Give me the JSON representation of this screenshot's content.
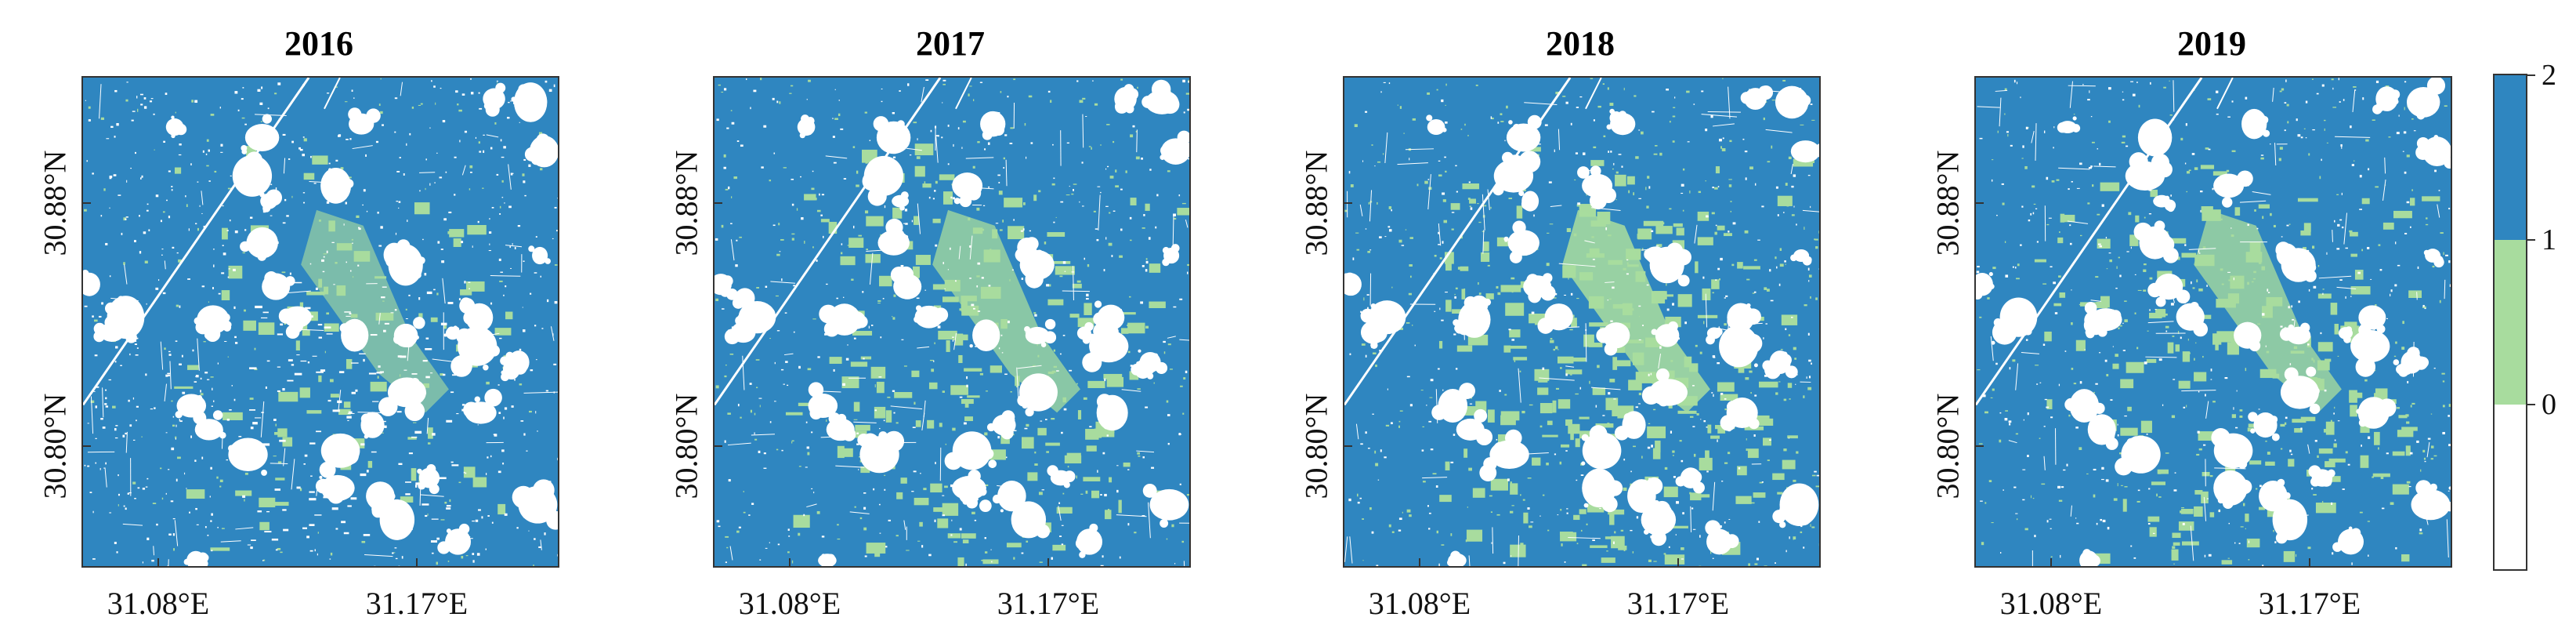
{
  "panels": [
    {
      "title": "2016"
    },
    {
      "title": "2017"
    },
    {
      "title": "2018"
    },
    {
      "title": "2019"
    }
  ],
  "x_ticks": [
    "31.08°E",
    "31.17°E"
  ],
  "y_ticks": [
    "30.88°N",
    "30.80°N"
  ],
  "colorbar": {
    "labels": [
      "2",
      "1",
      "0"
    ],
    "classes": [
      {
        "value_range": [
          1,
          2
        ],
        "color": "#2f86c0"
      },
      {
        "value_range": [
          0,
          1
        ],
        "color": "#a8dc9e"
      },
      {
        "value_range": [
          -1,
          0
        ],
        "color": "#ffffff"
      }
    ]
  },
  "colors": {
    "class_2": "#2f86c0",
    "class_1": "#a8dc9e",
    "class_0": "#ffffff",
    "axis": "#333333"
  }
}
